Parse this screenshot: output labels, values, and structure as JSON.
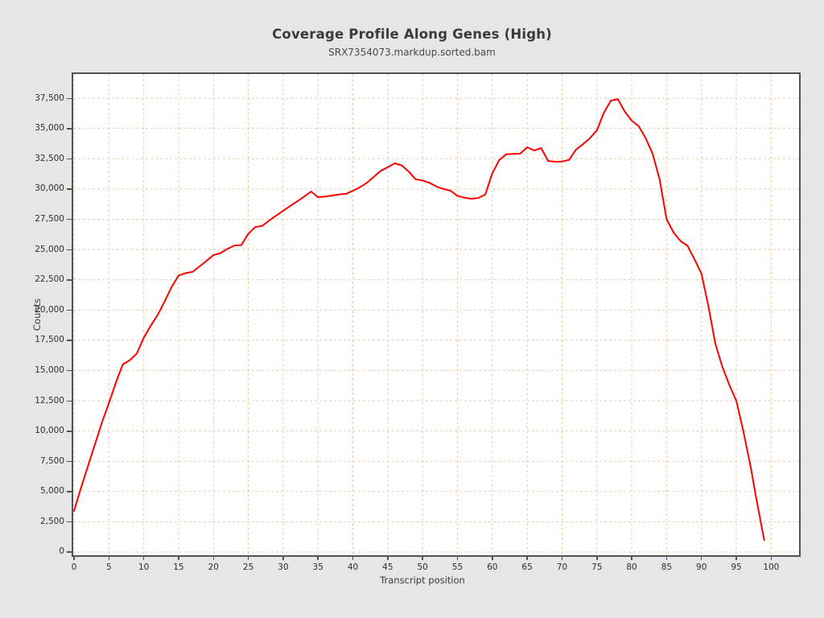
{
  "header": {
    "title": "Coverage Profile Along Genes (High)",
    "subtitle": "SRX7354073.markdup.sorted.bam"
  },
  "colors": {
    "canvas_background": "#e6e6e6",
    "plot_background": "#ffffff",
    "frame": "#525252",
    "gridline": "#f0c9a1",
    "line": "#ff0000",
    "text": "#3b3b3b"
  },
  "chart_data": {
    "type": "line",
    "title": "Coverage Profile Along Genes (High)",
    "subtitle": "SRX7354073.markdup.sorted.bam",
    "xlabel": "Transcript position",
    "ylabel": "Counts",
    "xlim": [
      -0.115,
      104
    ],
    "ylim": [
      -266,
      39500
    ],
    "x_ticks": [
      0,
      5,
      10,
      15,
      20,
      25,
      30,
      35,
      40,
      45,
      50,
      55,
      60,
      65,
      70,
      75,
      80,
      85,
      90,
      95,
      100
    ],
    "y_ticks": [
      0,
      2500,
      5000,
      7500,
      10000,
      12500,
      15000,
      17500,
      20000,
      22500,
      25000,
      27500,
      30000,
      32500,
      35000,
      37500
    ],
    "grid": "both-axes dashed",
    "legend": "none",
    "series": [
      {
        "name": "SRX7354073.markdup.sorted.bam",
        "color": "#ff0000",
        "x": {
          "start": 0,
          "step": 1
        },
        "values": [
          3400,
          5300,
          7100,
          8900,
          10700,
          12300,
          14000,
          15500,
          15850,
          16400,
          17700,
          18700,
          19600,
          20700,
          21900,
          22850,
          23050,
          23150,
          23600,
          24060,
          24540,
          24700,
          25050,
          25330,
          25360,
          26300,
          26850,
          26950,
          27400,
          27800,
          28200,
          28600,
          28970,
          29370,
          29790,
          29320,
          29380,
          29450,
          29550,
          29600,
          29850,
          30150,
          30500,
          31000,
          31500,
          31800,
          32120,
          31950,
          31450,
          30800,
          30700,
          30500,
          30200,
          30000,
          29860,
          29430,
          29280,
          29190,
          29260,
          29550,
          31300,
          32400,
          32870,
          32900,
          32920,
          33450,
          33180,
          33380,
          32320,
          32250,
          32270,
          32400,
          33250,
          33700,
          34200,
          34850,
          36300,
          37300,
          37430,
          36400,
          35640,
          35200,
          34200,
          32900,
          30800,
          27500,
          26400,
          25700,
          25300,
          24200,
          23000,
          20300,
          17200,
          15300,
          13800,
          12500,
          10000,
          7200,
          4000,
          1000
        ]
      }
    ]
  }
}
